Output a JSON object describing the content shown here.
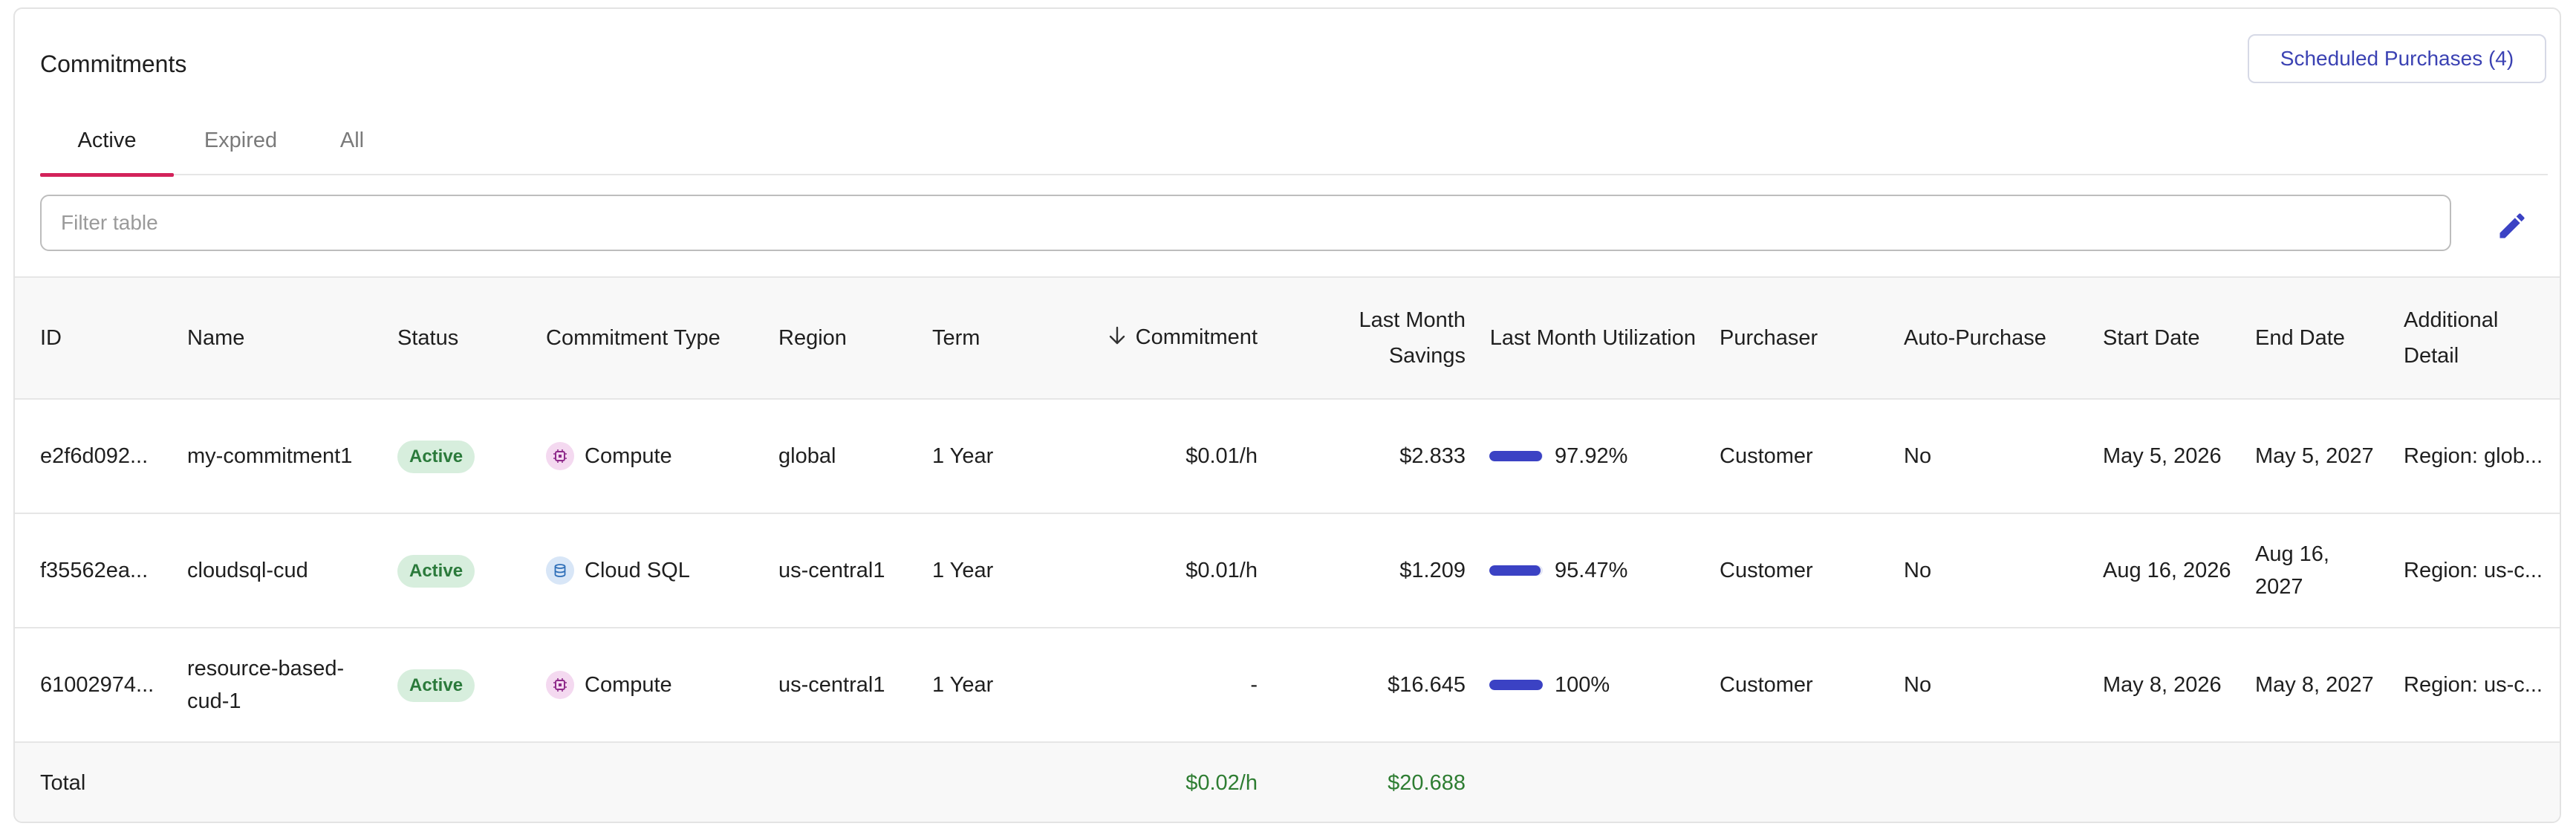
{
  "header": {
    "title": "Commitments",
    "scheduled_button": "Scheduled Purchases (4)"
  },
  "tabs": [
    {
      "label": "Active",
      "active": true
    },
    {
      "label": "Expired",
      "active": false
    },
    {
      "label": "All",
      "active": false
    }
  ],
  "filter": {
    "placeholder": "Filter table",
    "value": ""
  },
  "edit_icon": "pencil-icon",
  "columns": {
    "id": "ID",
    "name": "Name",
    "status": "Status",
    "commitment_type": "Commitment Type",
    "region": "Region",
    "term": "Term",
    "commitment": "Commitment",
    "last_month_savings": "Last Month Savings",
    "last_month_utilization": "Last Month Utilization",
    "purchaser": "Purchaser",
    "auto_purchase": "Auto-Purchase",
    "start_date": "Start Date",
    "end_date": "End Date",
    "additional_detail": "Additional Detail"
  },
  "sort": {
    "column": "Commitment",
    "direction": "descending",
    "icon": "arrow-down-icon"
  },
  "rows": [
    {
      "id": "e2f6d092...",
      "name": "my-commitment1",
      "status": "Active",
      "commitment_type": "Compute",
      "type_icon": "compute-icon",
      "region": "global",
      "term": "1 Year",
      "commitment": "$0.01/h",
      "last_month_savings": "$2.833",
      "utilization_text": "97.92%",
      "utilization": 0.9792,
      "purchaser": "Customer",
      "auto_purchase": "No",
      "start_date": "May 5, 2026",
      "end_date": "May 5, 2027",
      "additional_detail": "Region: glob..."
    },
    {
      "id": "f35562ea...",
      "name": "cloudsql-cud",
      "status": "Active",
      "commitment_type": "Cloud SQL",
      "type_icon": "cloud-sql-icon",
      "region": "us-central1",
      "term": "1 Year",
      "commitment": "$0.01/h",
      "last_month_savings": "$1.209",
      "utilization_text": "95.47%",
      "utilization": 0.9547,
      "purchaser": "Customer",
      "auto_purchase": "No",
      "start_date": "Aug 16, 2026",
      "end_date": "Aug 16, 2027",
      "additional_detail": "Region: us-c..."
    },
    {
      "id": "61002974...",
      "name": "resource-based-cud-1",
      "status": "Active",
      "commitment_type": "Compute",
      "type_icon": "compute-icon",
      "region": "us-central1",
      "term": "1 Year",
      "commitment": "-",
      "last_month_savings": "$16.645",
      "utilization_text": "100%",
      "utilization": 1.0,
      "purchaser": "Customer",
      "auto_purchase": "No",
      "start_date": "May 8, 2026",
      "end_date": "May 8, 2027",
      "additional_detail": "Region: us-c..."
    }
  ],
  "totals": {
    "label": "Total",
    "commitment": "$0.02/h",
    "last_month_savings": "$20.688"
  },
  "colors": {
    "accent": "#3b42c4",
    "tab_underline": "#d3225a",
    "status_bg": "#d7eedd",
    "status_text": "#2b7a3b",
    "total_green": "#2e7d32",
    "compute_icon_bg": "#f4d9f0",
    "compute_icon_fg": "#8e2a8a",
    "cloudsql_icon_bg": "#d8e6f7",
    "cloudsql_icon_fg": "#2f6fb8"
  }
}
